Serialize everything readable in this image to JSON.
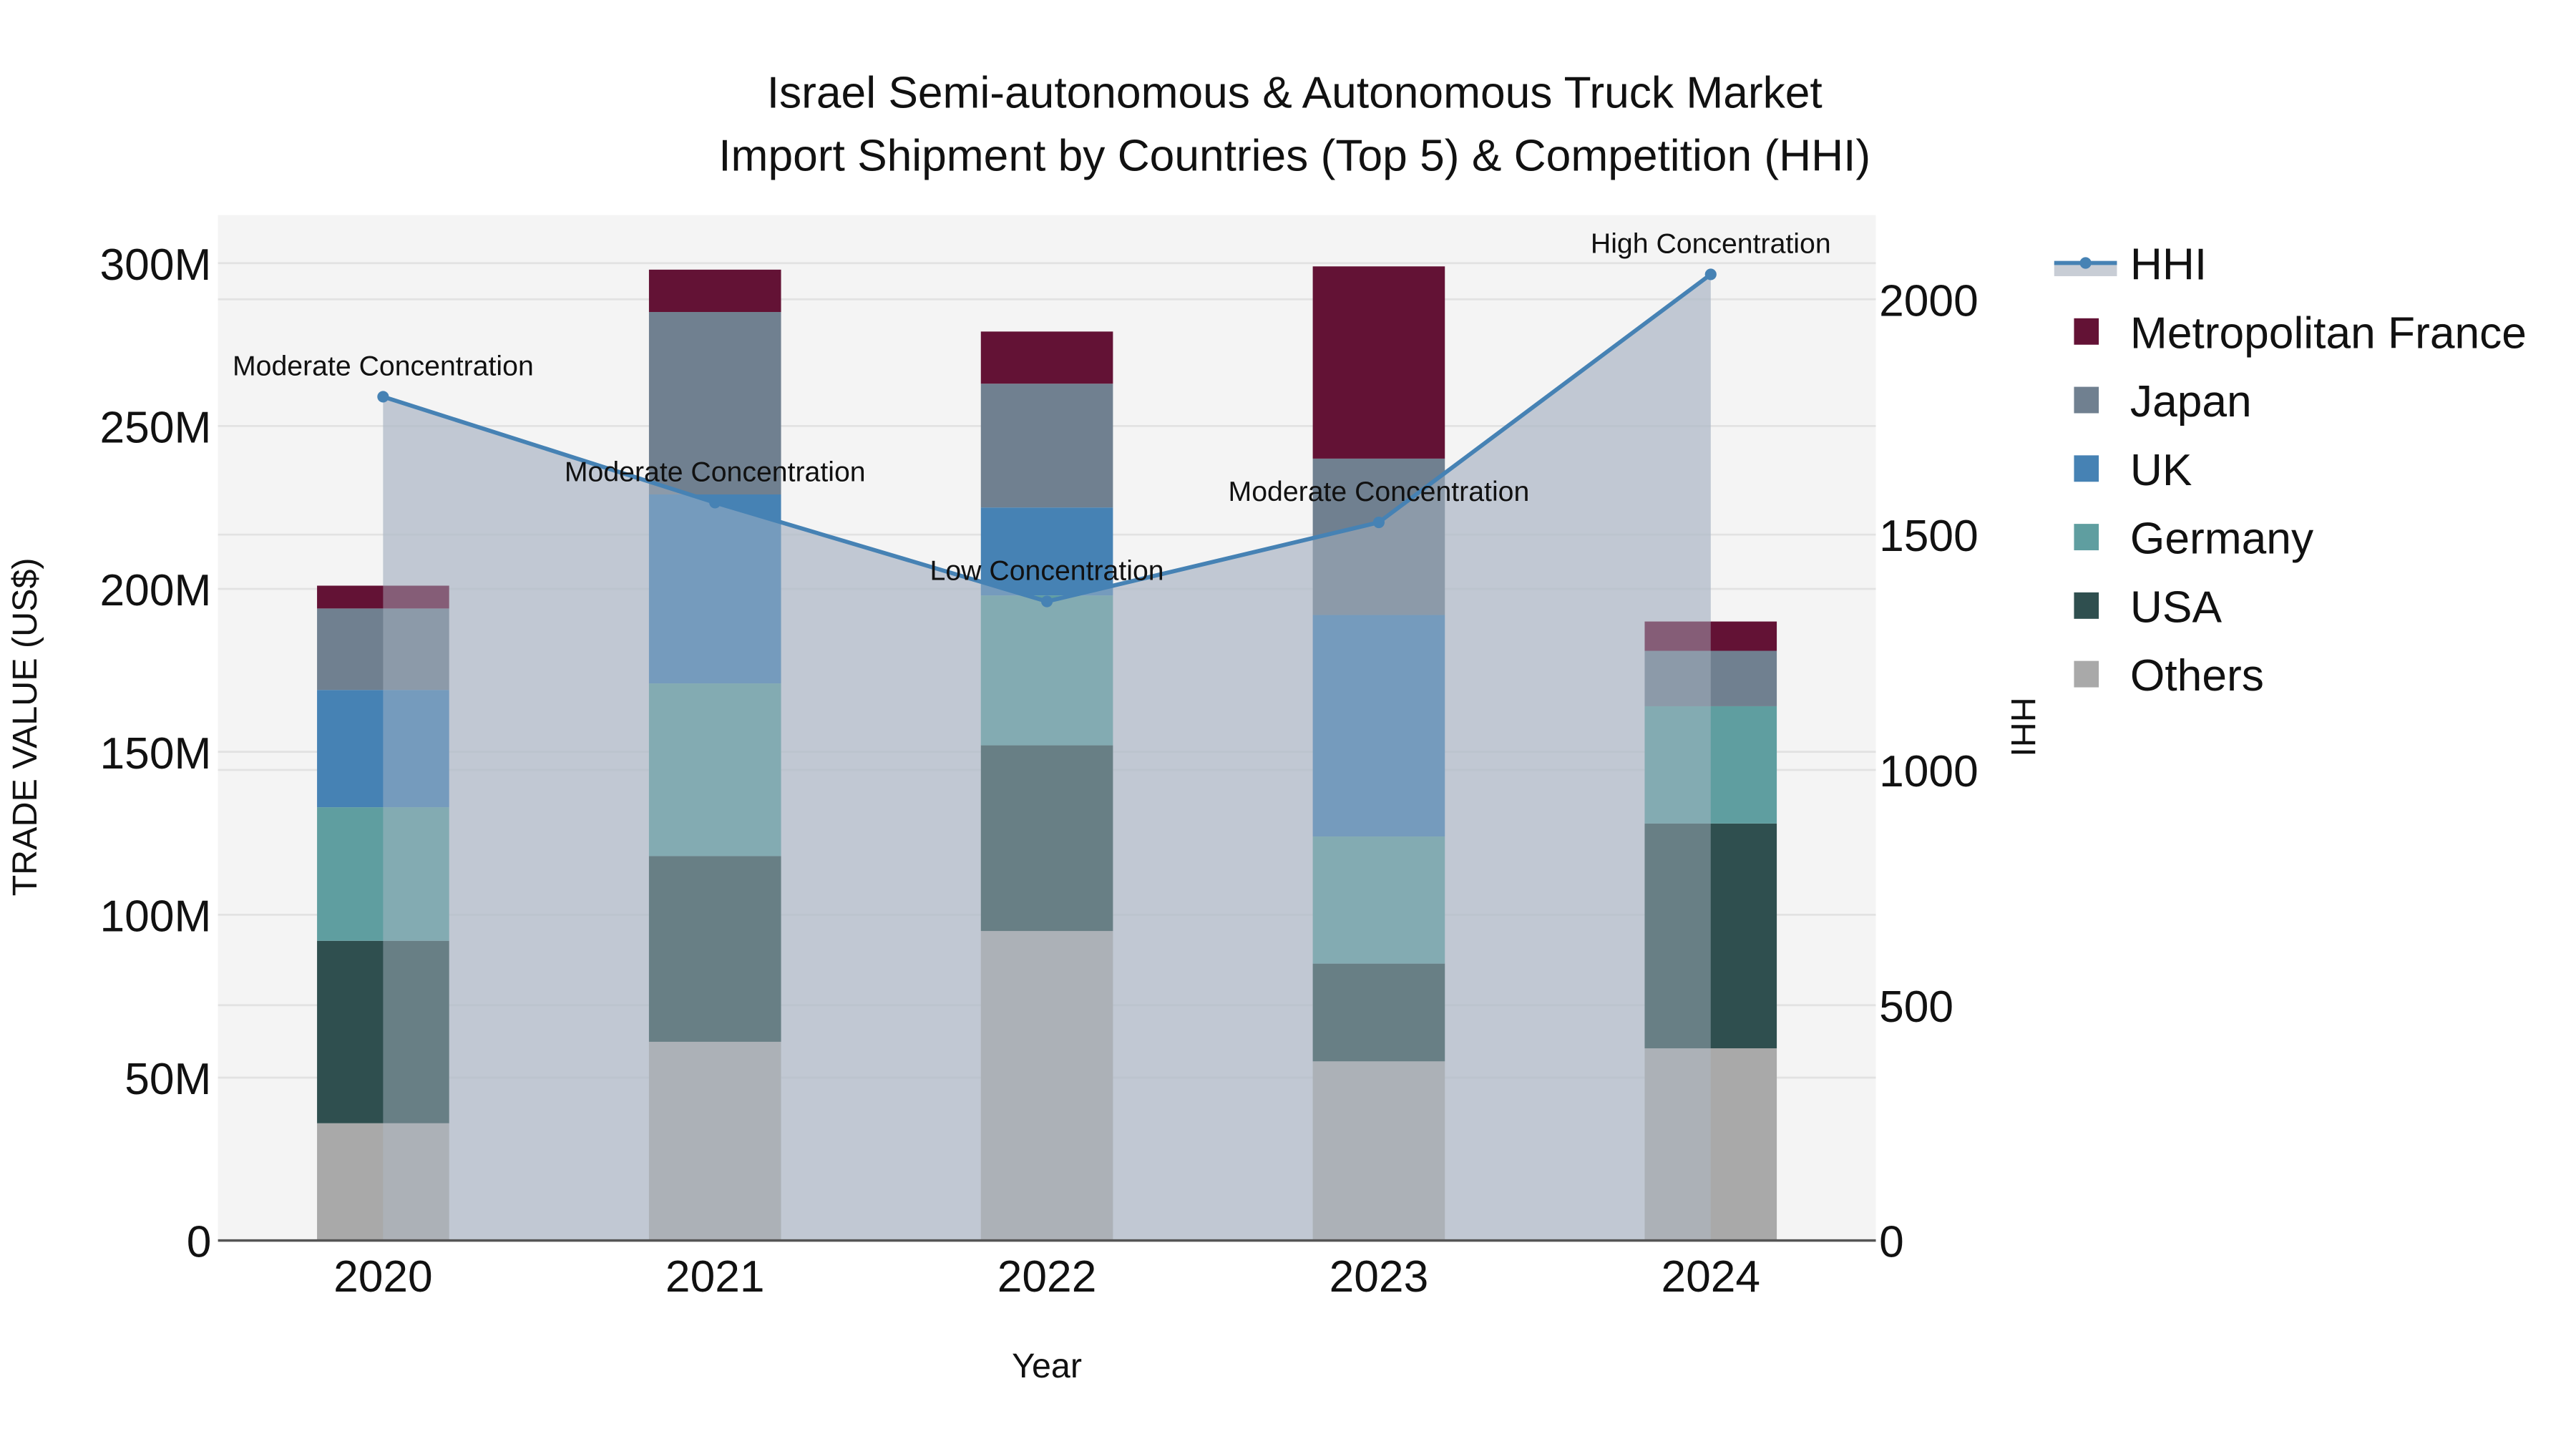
{
  "chart_data": {
    "type": "bar",
    "title": "Israel Semi-autonomous & Autonomous Truck Market",
    "subtitle": "Import Shipment by Countries (Top 5) & Competition (HHI)",
    "xlabel": "Year",
    "ylabel": "TRADE VALUE (US$)",
    "y2label": "HHI",
    "categories": [
      "2020",
      "2021",
      "2022",
      "2023",
      "2024"
    ],
    "ylim": [
      0,
      313
    ],
    "y2lim": [
      0,
      2200
    ],
    "yticks": [
      "0",
      "50M",
      "100M",
      "150M",
      "200M",
      "250M",
      "300M"
    ],
    "y2ticks": [
      "0",
      "500",
      "1000",
      "1500",
      "2000"
    ],
    "series": [
      {
        "name": "Others",
        "color": "#A9A9A9",
        "values": [
          36,
          61,
          95,
          55,
          59
        ]
      },
      {
        "name": "USA",
        "color": "#2F4F4F",
        "values": [
          56,
          57,
          57,
          30,
          69
        ]
      },
      {
        "name": "Germany",
        "color": "#5F9EA0",
        "values": [
          41,
          53,
          46,
          39,
          36
        ]
      },
      {
        "name": "UK",
        "color": "#4682B4",
        "values": [
          36,
          58,
          27,
          68,
          0
        ]
      },
      {
        "name": "Japan",
        "color": "#708090",
        "values": [
          25,
          56,
          38,
          48,
          17
        ]
      },
      {
        "name": "Metropolitan France",
        "color": "#631235",
        "values": [
          7,
          13,
          16,
          59,
          9
        ]
      }
    ],
    "hhi": {
      "name": "HHI",
      "color": "#4682B4",
      "values": [
        1793,
        1568,
        1358,
        1526,
        2053
      ],
      "labels": [
        "Moderate Concentration",
        "Moderate Concentration",
        "Low Concentration",
        "Moderate Concentration",
        "High Concentration"
      ]
    },
    "legend": [
      "HHI",
      "Metropolitan France",
      "Japan",
      "UK",
      "Germany",
      "USA",
      "Others"
    ],
    "legend_position": "right",
    "grid": true
  }
}
